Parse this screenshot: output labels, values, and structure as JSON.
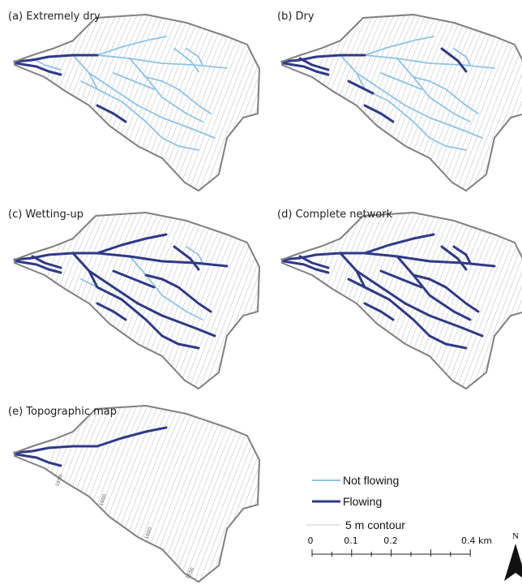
{
  "panels": [
    {
      "title": "(a) Extremely dry"
    },
    {
      "title": "(b) Dry"
    },
    {
      "title": "(c) Wetting-up"
    },
    {
      "title": "(d) Complete network"
    },
    {
      "title": "(e) Topographic map"
    }
  ],
  "contour_labels": [
    "1650",
    "1600",
    "1600",
    "1650"
  ],
  "legend": {
    "items": [
      {
        "label": "Not flowing"
      },
      {
        "label": "Flowing"
      },
      {
        "label": "5 m contour"
      }
    ]
  },
  "scale_bar": {
    "labels": [
      "0",
      "0.1",
      "0.2",
      "0.4 km"
    ]
  },
  "north_arrow": {
    "label": "N"
  }
}
